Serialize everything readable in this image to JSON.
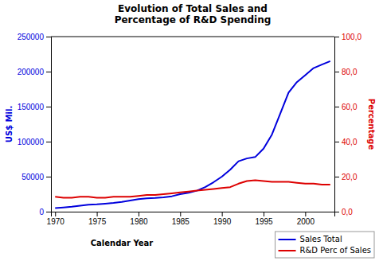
{
  "chart_data": {
    "type": "line",
    "title": "Evolution of Total Sales and\nPercentage of R&D Spending",
    "xlabel": "Calendar Year",
    "ylabel": "US$ Mil.",
    "y2label": "Percentage",
    "x": [
      1970,
      1971,
      1972,
      1973,
      1974,
      1975,
      1976,
      1977,
      1978,
      1979,
      1980,
      1981,
      1982,
      1983,
      1984,
      1985,
      1986,
      1987,
      1988,
      1989,
      1990,
      1991,
      1992,
      1993,
      1994,
      1995,
      1996,
      1997,
      1998,
      1999,
      2000,
      2001,
      2002,
      2003
    ],
    "series": [
      {
        "name": "Sales Total",
        "color": "#0000DD",
        "values": [
          5000,
          6000,
          7000,
          8500,
          10000,
          10500,
          11500,
          12500,
          14000,
          16000,
          18000,
          19000,
          19500,
          20500,
          22000,
          25000,
          27000,
          30000,
          35000,
          42000,
          50000,
          60000,
          72000,
          76000,
          78000,
          90000,
          110000,
          140000,
          170000,
          185000,
          195000,
          205000,
          210000,
          215000
        ]
      },
      {
        "name": "R&D Perc of Sales",
        "color": "#DD0000",
        "axis": "y2",
        "values": [
          8.5,
          8.0,
          8.0,
          8.5,
          8.5,
          8.0,
          8.0,
          8.5,
          8.5,
          8.5,
          9.0,
          9.5,
          9.5,
          10.0,
          10.5,
          11.0,
          11.5,
          12.0,
          12.5,
          13.0,
          13.5,
          14.0,
          16.0,
          17.5,
          18.0,
          17.5,
          17.0,
          17.0,
          17.0,
          16.5,
          16.0,
          16.0,
          15.5,
          15.5
        ]
      }
    ],
    "xlim": [
      1969.5,
      2003.5
    ],
    "xticks": [
      1970,
      1975,
      1980,
      1985,
      1990,
      1995,
      2000
    ],
    "ylim": [
      0,
      250000
    ],
    "yticks": [
      0,
      50000,
      100000,
      150000,
      200000,
      250000
    ],
    "y2lim": [
      0,
      100
    ],
    "y2ticks": [
      {
        "value": 0.0,
        "label": "0,0"
      },
      {
        "value": 20.0,
        "label": "20,0"
      },
      {
        "value": 40.0,
        "label": "40,0"
      },
      {
        "value": 60.0,
        "label": "60,0"
      },
      {
        "value": 80.0,
        "label": "80,0"
      },
      {
        "value": 100.0,
        "label": "100,0"
      }
    ],
    "grid": false,
    "legend": "bottom right"
  }
}
